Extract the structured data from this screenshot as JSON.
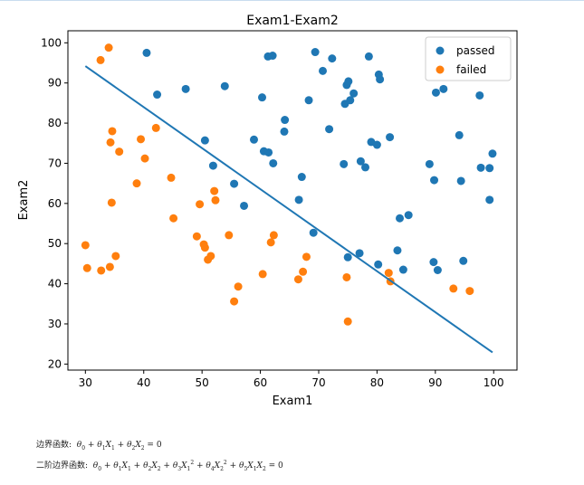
{
  "chart_data": {
    "type": "scatter",
    "title": "Exam1-Exam2",
    "xlabel": "Exam1",
    "ylabel": "Exam2",
    "xlim": [
      27,
      104
    ],
    "ylim": [
      18.5,
      103
    ],
    "xticks": [
      30,
      40,
      50,
      60,
      70,
      80,
      90,
      100
    ],
    "yticks": [
      20,
      30,
      40,
      50,
      60,
      70,
      80,
      90,
      100
    ],
    "grid": false,
    "legend_position": "top-right",
    "series": [
      {
        "name": "passed",
        "color": "#1f77b4",
        "points": [
          [
            40.5,
            97.5
          ],
          [
            42.3,
            87.1
          ],
          [
            47.2,
            88.5
          ],
          [
            50.5,
            75.7
          ],
          [
            51.9,
            69.4
          ],
          [
            53.9,
            89.2
          ],
          [
            55.5,
            64.9
          ],
          [
            57.2,
            59.4
          ],
          [
            58.9,
            75.9
          ],
          [
            60.3,
            86.4
          ],
          [
            60.6,
            73.0
          ],
          [
            61.3,
            96.6
          ],
          [
            61.4,
            72.7
          ],
          [
            62.1,
            96.8
          ],
          [
            62.2,
            70.0
          ],
          [
            64.1,
            77.9
          ],
          [
            64.2,
            80.8
          ],
          [
            66.6,
            60.9
          ],
          [
            67.1,
            66.6
          ],
          [
            68.3,
            85.7
          ],
          [
            69.1,
            52.7
          ],
          [
            69.4,
            97.7
          ],
          [
            70.7,
            93.0
          ],
          [
            71.8,
            78.5
          ],
          [
            72.3,
            96.1
          ],
          [
            74.3,
            69.8
          ],
          [
            74.5,
            84.8
          ],
          [
            74.8,
            89.5
          ],
          [
            75.1,
            90.4
          ],
          [
            75.4,
            85.7
          ],
          [
            75.0,
            46.6
          ],
          [
            76.0,
            87.4
          ],
          [
            77.0,
            47.6
          ],
          [
            77.2,
            70.5
          ],
          [
            78.0,
            69.0
          ],
          [
            78.6,
            96.6
          ],
          [
            79.0,
            75.3
          ],
          [
            80.0,
            74.6
          ],
          [
            80.2,
            44.8
          ],
          [
            80.3,
            92.1
          ],
          [
            80.5,
            90.9
          ],
          [
            82.2,
            76.5
          ],
          [
            83.5,
            48.3
          ],
          [
            83.9,
            56.3
          ],
          [
            84.5,
            43.5
          ],
          [
            85.4,
            57.1
          ],
          [
            89.0,
            69.8
          ],
          [
            89.7,
            45.4
          ],
          [
            89.8,
            65.8
          ],
          [
            90.1,
            87.6
          ],
          [
            90.4,
            43.4
          ],
          [
            91.4,
            88.5
          ],
          [
            94.1,
            77.0
          ],
          [
            94.4,
            65.6
          ],
          [
            94.8,
            45.7
          ],
          [
            97.6,
            86.9
          ],
          [
            97.8,
            68.9
          ],
          [
            99.3,
            60.9
          ],
          [
            99.3,
            68.8
          ],
          [
            99.8,
            72.4
          ]
        ]
      },
      {
        "name": "failed",
        "color": "#ff7f0e",
        "points": [
          [
            30.0,
            49.6
          ],
          [
            30.3,
            43.9
          ],
          [
            32.6,
            95.7
          ],
          [
            32.7,
            43.3
          ],
          [
            34.0,
            98.8
          ],
          [
            34.2,
            44.2
          ],
          [
            34.3,
            75.2
          ],
          [
            34.5,
            60.2
          ],
          [
            34.6,
            78.0
          ],
          [
            35.2,
            46.9
          ],
          [
            35.8,
            72.9
          ],
          [
            38.8,
            65.0
          ],
          [
            39.5,
            76.0
          ],
          [
            40.2,
            71.2
          ],
          [
            42.1,
            78.8
          ],
          [
            44.7,
            66.4
          ],
          [
            45.1,
            56.3
          ],
          [
            49.1,
            51.8
          ],
          [
            49.6,
            59.8
          ],
          [
            50.3,
            49.8
          ],
          [
            50.5,
            49.0
          ],
          [
            51.0,
            46.0
          ],
          [
            51.5,
            46.9
          ],
          [
            52.1,
            63.1
          ],
          [
            52.3,
            60.8
          ],
          [
            54.6,
            52.1
          ],
          [
            55.5,
            35.6
          ],
          [
            56.2,
            39.3
          ],
          [
            60.4,
            42.4
          ],
          [
            61.8,
            50.3
          ],
          [
            62.3,
            52.1
          ],
          [
            66.5,
            41.1
          ],
          [
            67.3,
            43.0
          ],
          [
            67.9,
            46.7
          ],
          [
            74.8,
            41.6
          ],
          [
            75.0,
            30.6
          ],
          [
            82.0,
            42.7
          ],
          [
            82.3,
            40.6
          ],
          [
            93.1,
            38.8
          ],
          [
            95.9,
            38.2
          ]
        ]
      }
    ],
    "decision_boundary": {
      "type": "line",
      "color": "#1f77b4",
      "x": [
        30.0,
        99.8
      ],
      "y": [
        94.2,
        22.9
      ]
    }
  },
  "formulas": {
    "linear_label": "边界函数:",
    "quadratic_label": "二阶边界函数:"
  }
}
